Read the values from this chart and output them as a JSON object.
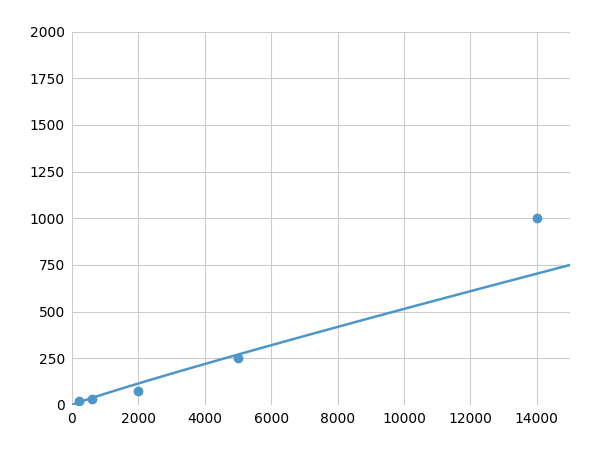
{
  "x_points": [
    200,
    600,
    2000,
    5000,
    14000
  ],
  "y_points": [
    20,
    30,
    75,
    250,
    1000
  ],
  "line_color": "#4d96c9",
  "marker_color": "#4d96c9",
  "marker_size": 6,
  "line_width": 1.8,
  "xlim": [
    0,
    15000
  ],
  "ylim": [
    0,
    2000
  ],
  "xticks": [
    0,
    2000,
    4000,
    6000,
    8000,
    10000,
    12000,
    14000
  ],
  "yticks": [
    0,
    250,
    500,
    750,
    1000,
    1250,
    1500,
    1750,
    2000
  ],
  "grid_color": "#cccccc",
  "background_color": "#ffffff",
  "tick_fontsize": 10,
  "figsize": [
    6.0,
    4.5
  ],
  "dpi": 100
}
